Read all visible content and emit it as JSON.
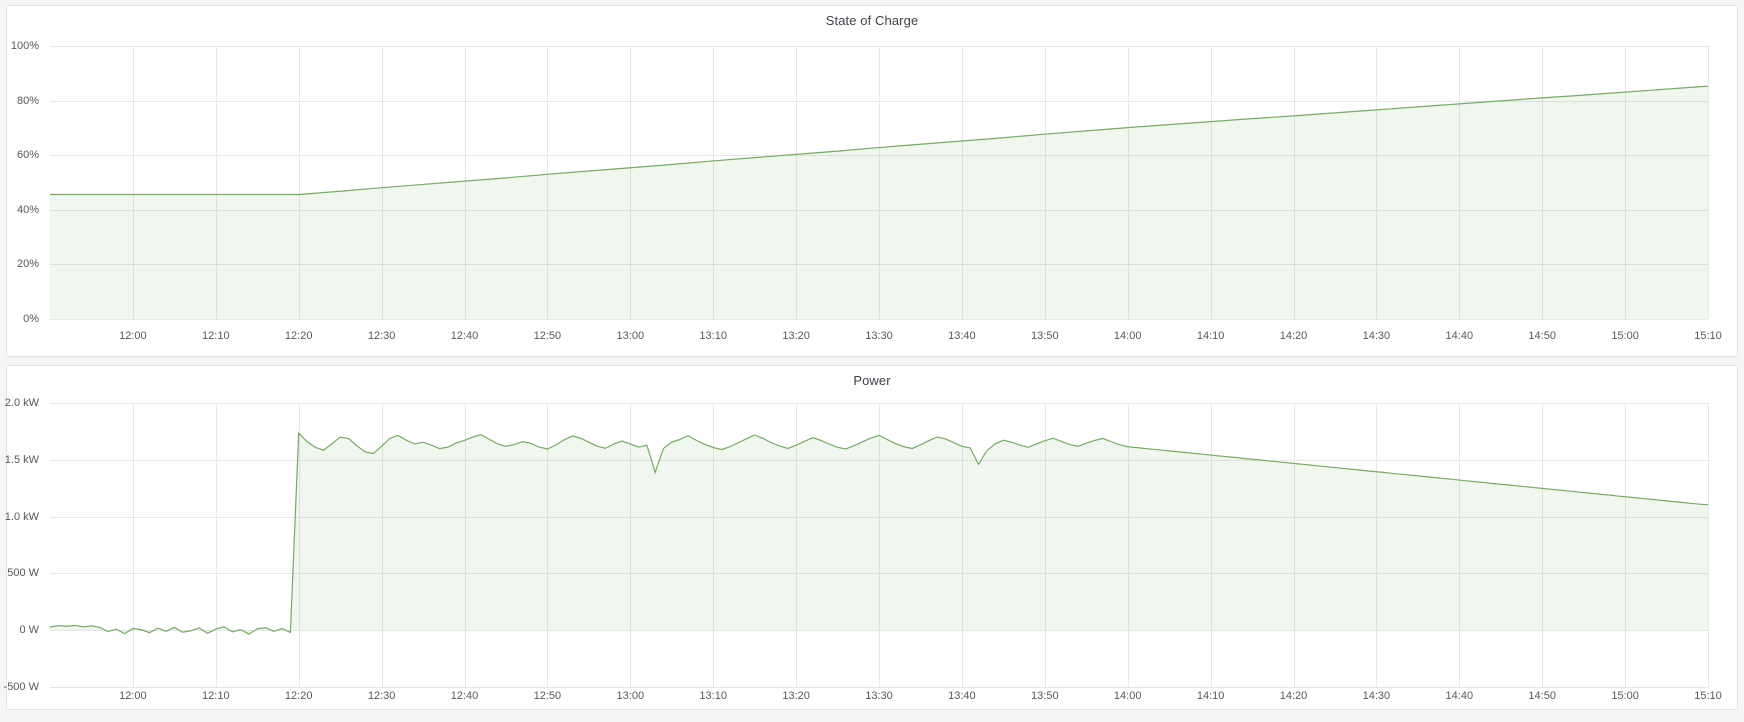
{
  "colors": {
    "series_line": "#77ab64",
    "series_fill": "rgba(115,178,105,0.11)",
    "grid": "#e5e7e9",
    "axis_text": "#55585e",
    "title_text": "#3f434a",
    "page_bg": "#f3f5f7",
    "panel_bg": "#ffffff",
    "panel_border": "#e1e3e6"
  },
  "chart_data": [
    {
      "type": "area",
      "title": "State of Charge",
      "ylabel": "percent",
      "ylim": [
        0,
        100
      ],
      "xlim": [
        0,
        200
      ],
      "x_unit": "minutes along visible window (11:50 to 15:10)",
      "grid": true,
      "legend": "none",
      "y_ticks": [
        {
          "value": 0,
          "label": "0%"
        },
        {
          "value": 20,
          "label": "20%"
        },
        {
          "value": 40,
          "label": "40%"
        },
        {
          "value": 60,
          "label": "60%"
        },
        {
          "value": 80,
          "label": "80%"
        },
        {
          "value": 100,
          "label": "100%"
        }
      ],
      "x_ticks": {
        "start_min": 10,
        "step_min": 10,
        "labels": [
          "12:00",
          "12:10",
          "12:20",
          "12:30",
          "12:40",
          "12:50",
          "13:00",
          "13:10",
          "13:20",
          "13:30",
          "13:40",
          "13:50",
          "14:00",
          "14:10",
          "14:20",
          "14:30",
          "14:40",
          "14:50",
          "15:00",
          "15:10"
        ]
      },
      "series": {
        "name": "State of Charge",
        "x0_min": 0,
        "dx_min": 5,
        "values": [
          45.6,
          45.6,
          45.6,
          45.6,
          45.6,
          45.6,
          45.6,
          46.8,
          48.1,
          49.3,
          50.5,
          51.7,
          53.0,
          54.2,
          55.4,
          56.6,
          57.9,
          59.1,
          60.3,
          61.5,
          62.8,
          64.0,
          65.2,
          66.4,
          67.7,
          68.9,
          70.1,
          71.2,
          72.3,
          73.4,
          74.4,
          75.5,
          76.6,
          77.7,
          78.8,
          79.9,
          81.0,
          82.0,
          83.1,
          84.2,
          85.3
        ]
      }
    },
    {
      "type": "area",
      "title": "Power",
      "ylabel": "watts",
      "ylim": [
        -500,
        2000
      ],
      "xlim": [
        0,
        200
      ],
      "x_unit": "minutes along visible window (11:50 to 15:10)",
      "grid": true,
      "legend": "none",
      "y_ticks": [
        {
          "value": -500,
          "label": "-500 W"
        },
        {
          "value": 0,
          "label": "0 W"
        },
        {
          "value": 500,
          "label": "500 W"
        },
        {
          "value": 1000,
          "label": "1.0 kW"
        },
        {
          "value": 1500,
          "label": "1.5 kW"
        },
        {
          "value": 2000,
          "label": "2.0 kW"
        }
      ],
      "x_ticks": {
        "start_min": 10,
        "step_min": 10,
        "labels": [
          "12:00",
          "12:10",
          "12:20",
          "12:30",
          "12:40",
          "12:50",
          "13:00",
          "13:10",
          "13:20",
          "13:30",
          "13:40",
          "13:50",
          "14:00",
          "14:10",
          "14:20",
          "14:30",
          "14:40",
          "14:50",
          "15:00",
          "15:10"
        ]
      },
      "series": {
        "name": "Power",
        "x0_min": 0,
        "dx_min": 1,
        "values": [
          28,
          40,
          35,
          42,
          30,
          38,
          25,
          -12,
          8,
          -30,
          15,
          5,
          -22,
          18,
          -10,
          25,
          -18,
          -5,
          20,
          -28,
          10,
          30,
          -15,
          5,
          -35,
          12,
          22,
          -10,
          15,
          -20,
          1735,
          1660,
          1610,
          1585,
          1640,
          1700,
          1688,
          1625,
          1570,
          1555,
          1620,
          1690,
          1715,
          1672,
          1640,
          1655,
          1630,
          1598,
          1612,
          1648,
          1672,
          1700,
          1722,
          1680,
          1640,
          1618,
          1635,
          1660,
          1645,
          1612,
          1595,
          1630,
          1675,
          1710,
          1690,
          1655,
          1620,
          1602,
          1638,
          1665,
          1640,
          1612,
          1628,
          1390,
          1600,
          1655,
          1680,
          1712,
          1670,
          1635,
          1608,
          1590,
          1615,
          1650,
          1685,
          1718,
          1688,
          1650,
          1622,
          1600,
          1628,
          1662,
          1695,
          1670,
          1638,
          1610,
          1595,
          1625,
          1658,
          1690,
          1715,
          1678,
          1642,
          1615,
          1600,
          1632,
          1668,
          1700,
          1685,
          1652,
          1618,
          1605,
          1460,
          1580,
          1640,
          1672,
          1655,
          1628,
          1610,
          1640,
          1668,
          1690,
          1662,
          1635,
          1618,
          1645,
          1670,
          1688,
          1660,
          1632,
          1615,
          1608,
          1600,
          1593,
          1586,
          1578,
          1571,
          1564,
          1556,
          1549,
          1542,
          1534,
          1527,
          1520,
          1512,
          1505,
          1498,
          1490,
          1483,
          1476,
          1468,
          1461,
          1454,
          1446,
          1439,
          1432,
          1424,
          1417,
          1410,
          1402,
          1395,
          1388,
          1380,
          1373,
          1366,
          1358,
          1351,
          1344,
          1336,
          1329,
          1322,
          1314,
          1307,
          1300,
          1292,
          1285,
          1278,
          1270,
          1263,
          1256,
          1248,
          1241,
          1234,
          1226,
          1219,
          1212,
          1204,
          1197,
          1190,
          1182,
          1175,
          1168,
          1160,
          1153,
          1146,
          1138,
          1131,
          1124,
          1116,
          1109,
          1105
        ]
      }
    }
  ]
}
